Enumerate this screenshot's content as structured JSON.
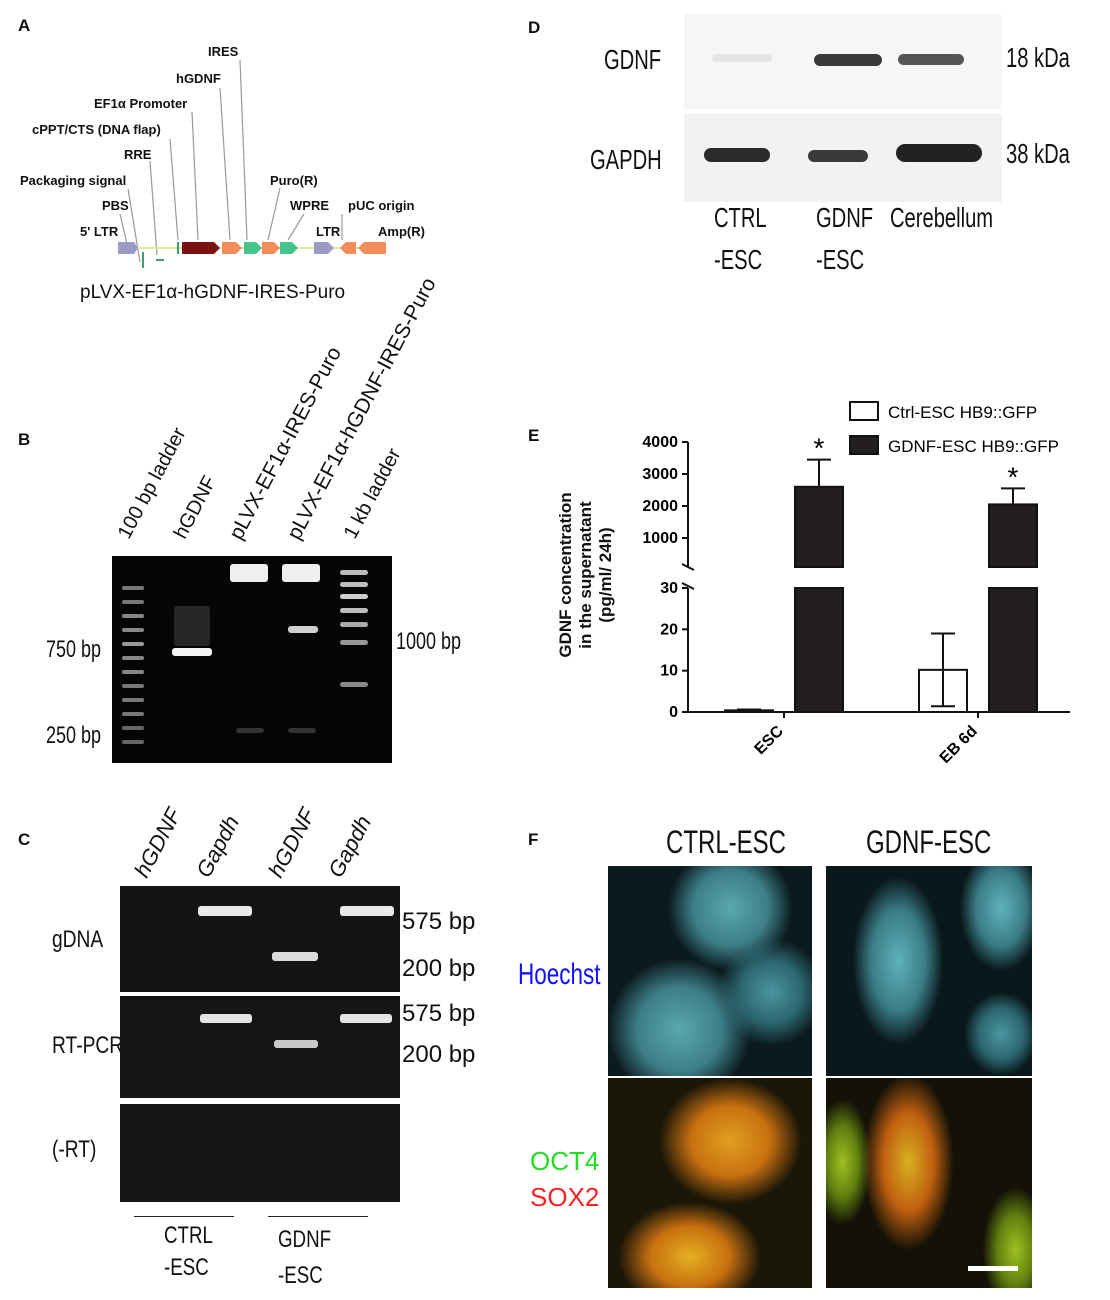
{
  "panels": {
    "a": "A",
    "b": "B",
    "c": "C",
    "d": "D",
    "e": "E",
    "f": "F"
  },
  "plasmid": {
    "name": "pLVX-EF1α-hGDNF-IRES-Puro",
    "features": {
      "ires": "IRES",
      "hgdnf": "hGDNF",
      "ef1a": "EF1α Promoter",
      "cppt": "cPPT/CTS (DNA flap)",
      "rre": "RRE",
      "packaging": "Packaging signal",
      "pbs": "PBS",
      "ltr5": "5' LTR",
      "puro": "Puro(R)",
      "wpre": "WPRE",
      "ltr": "LTR",
      "puc": "pUC origin",
      "amp": "Amp(R)"
    }
  },
  "gel_b": {
    "lanes": [
      "100 bp ladder",
      "hGDNF",
      "pLVX-EF1α-IRES-Puro",
      "pLVX-EF1α-hGDNF-IRES-Puro",
      "1 kb ladder"
    ],
    "marker_750": "750 bp",
    "marker_250": "250 bp",
    "marker_1000": "1000 bp"
  },
  "gel_c": {
    "lanes": [
      "hGDNF",
      "Gapdh",
      "hGDNF",
      "Gapdh"
    ],
    "rows": [
      "gDNA",
      "RT-PCR",
      "(-RT)"
    ],
    "size_575": "575 bp",
    "size_200": "200 bp",
    "groups": [
      "CTRL",
      "-ESC",
      "GDNF",
      "-ESC"
    ]
  },
  "blot_d": {
    "rows": [
      "GDNF",
      "GAPDH"
    ],
    "kda": [
      "18 kDa",
      "38 kDa"
    ],
    "lanes": [
      [
        "CTRL",
        "-ESC"
      ],
      [
        "GDNF",
        "-ESC"
      ],
      [
        "Cerebellum"
      ]
    ]
  },
  "chart_data": {
    "type": "bar",
    "ylabel": "GDNF concentration in the supernatant (pg/ml/ 24h)",
    "ylabel_lines": [
      "GDNF concentration",
      "in the supernatant",
      "(pg/ml/ 24h)"
    ],
    "categories": [
      "ESC",
      "EB 6d"
    ],
    "series": [
      {
        "name": "Ctrl-ESC HB9::GFP",
        "values": [
          0.4,
          10.2
        ],
        "errors": [
          0.2,
          8.8
        ]
      },
      {
        "name": "GDNF-ESC HB9::GFP",
        "values": [
          2600,
          2050
        ],
        "errors": [
          850,
          500
        ]
      }
    ],
    "significance": [
      "*",
      "*"
    ],
    "y_lower_ticks": [
      "0",
      "10",
      "20",
      "30"
    ],
    "y_upper_ticks": [
      "1000",
      "2000",
      "3000",
      "4000"
    ],
    "broken_axis": true,
    "legend_position": "top-right"
  },
  "micro_f": {
    "columns": [
      "CTRL-ESC",
      "GDNF-ESC"
    ],
    "hoechst": "Hoechst",
    "oct4": "OCT4",
    "sox2": "SOX2",
    "colors": {
      "hoechst": "#1010ff",
      "oct4": "#22dd22",
      "sox2": "#ff2020"
    }
  }
}
